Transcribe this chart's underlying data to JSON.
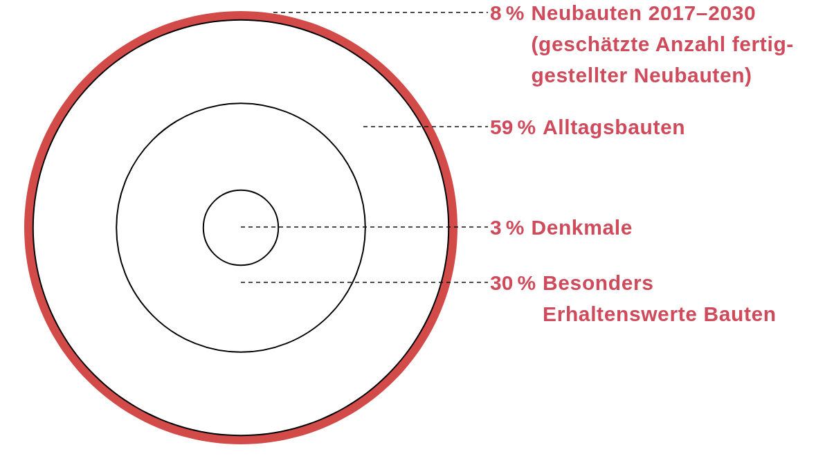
{
  "chart_data": {
    "type": "other",
    "categories": [
      "Neubauten 2017–2030\n(geschätzte Anzahl fertig-\ngestellter Neubauten)",
      "Alltagsbauten",
      "Denkmale",
      "Besonders\nErhaltenswerte Bauten"
    ],
    "values": [
      8,
      59,
      3,
      30
    ],
    "value_labels": [
      "8 %",
      "59 %",
      "3 %",
      "30 %"
    ],
    "colors": [
      "#d24b48",
      "#000000",
      "#000000",
      "#000000"
    ]
  }
}
